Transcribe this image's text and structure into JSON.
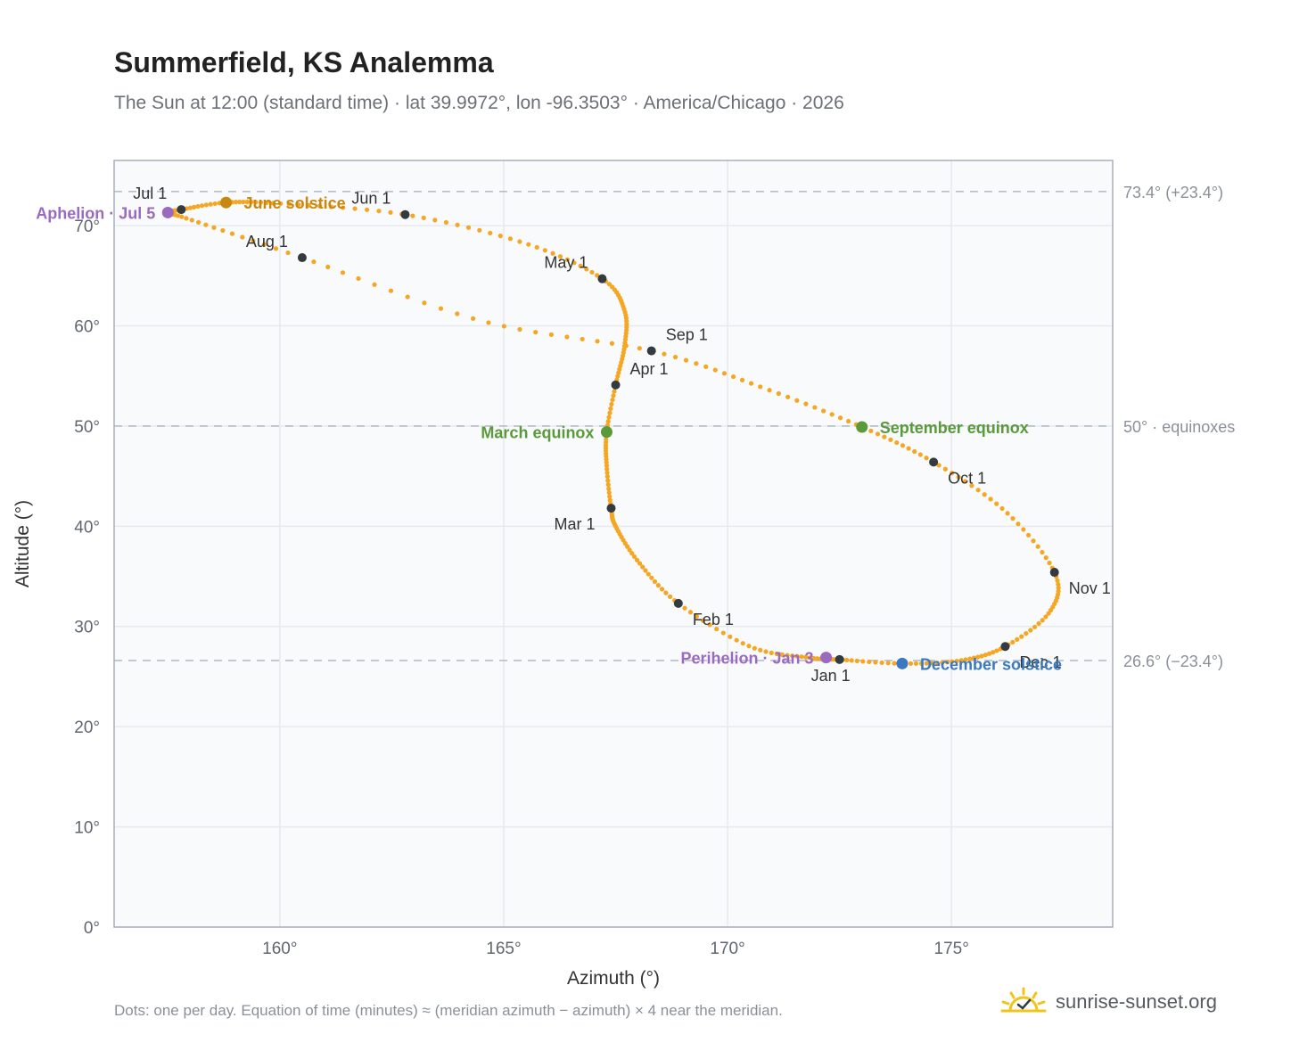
{
  "title": "Summerfield, KS Analemma",
  "subtitle": "The Sun at 12:00 (standard time) · lat 39.9972°, lon -96.3503° · America/Chicago · 2026",
  "footnote": "Dots: one per day. Equation of time (minutes) ≈ (meridian azimuth − azimuth) × 4 near the meridian.",
  "brand": {
    "name": "sunrise-sunset.org",
    "icon": "sun-check-icon",
    "icon_color": "#f0c419"
  },
  "colors": {
    "path": "#f5a623",
    "month_marker": "#333a40",
    "solstice_june": "#c8870f",
    "solstice_december": "#3a78c0",
    "equinox": "#5a9a3a",
    "apsis": "#9a6ac0",
    "grid": "#e6e9ee",
    "plot_bg": "#f8fafc",
    "plot_border": "#a7b0bd",
    "reference_line": "#b5bec9"
  },
  "chart_data": {
    "type": "scatter",
    "xlabel": "Azimuth (°)",
    "ylabel": "Altitude (°)",
    "xlim": [
      156.3,
      178.6
    ],
    "ylim": [
      0,
      76.5
    ],
    "xticks": [
      {
        "value": 160,
        "label": "160°"
      },
      {
        "value": 165,
        "label": "165°"
      },
      {
        "value": 170,
        "label": "170°"
      },
      {
        "value": 175,
        "label": "175°"
      }
    ],
    "yticks": [
      {
        "value": 0,
        "label": "0°"
      },
      {
        "value": 10,
        "label": "10°"
      },
      {
        "value": 20,
        "label": "20°"
      },
      {
        "value": 30,
        "label": "30°"
      },
      {
        "value": 40,
        "label": "40°"
      },
      {
        "value": 50,
        "label": "50°"
      },
      {
        "value": 60,
        "label": "60°"
      },
      {
        "value": 70,
        "label": "70°"
      }
    ],
    "grid": true,
    "reference_lines": [
      {
        "y": 73.4,
        "label": "73.4° (+23.4°)"
      },
      {
        "y": 50,
        "label": "50° · equinoxes"
      },
      {
        "y": 26.6,
        "label": "26.6° (−23.4°)"
      }
    ],
    "path_anchors": [
      {
        "x": 172.5,
        "y": 26.7
      },
      {
        "x": 171.8,
        "y": 26.9
      },
      {
        "x": 170.5,
        "y": 28.0
      },
      {
        "x": 168.9,
        "y": 32.3
      },
      {
        "x": 168.0,
        "y": 36.5
      },
      {
        "x": 167.5,
        "y": 40.0
      },
      {
        "x": 167.4,
        "y": 41.8
      },
      {
        "x": 167.3,
        "y": 46.0
      },
      {
        "x": 167.3,
        "y": 49.4
      },
      {
        "x": 167.5,
        "y": 54.1
      },
      {
        "x": 167.7,
        "y": 58.0
      },
      {
        "x": 167.7,
        "y": 61.5
      },
      {
        "x": 167.2,
        "y": 64.7
      },
      {
        "x": 165.5,
        "y": 68.2
      },
      {
        "x": 162.8,
        "y": 71.1
      },
      {
        "x": 160.0,
        "y": 72.2
      },
      {
        "x": 158.8,
        "y": 72.3
      },
      {
        "x": 157.8,
        "y": 71.6
      },
      {
        "x": 157.5,
        "y": 71.3
      },
      {
        "x": 158.0,
        "y": 70.6
      },
      {
        "x": 160.5,
        "y": 66.8
      },
      {
        "x": 164.5,
        "y": 60.5
      },
      {
        "x": 168.3,
        "y": 57.5
      },
      {
        "x": 170.8,
        "y": 53.8
      },
      {
        "x": 173.0,
        "y": 49.9
      },
      {
        "x": 174.6,
        "y": 46.4
      },
      {
        "x": 176.2,
        "y": 41.5
      },
      {
        "x": 177.3,
        "y": 35.4
      },
      {
        "x": 177.2,
        "y": 31.5
      },
      {
        "x": 176.2,
        "y": 28.0
      },
      {
        "x": 175.2,
        "y": 26.6
      },
      {
        "x": 173.9,
        "y": 26.3
      },
      {
        "x": 172.5,
        "y": 26.7
      }
    ],
    "month_markers": [
      {
        "label": "Jan 1",
        "x": 172.5,
        "y": 26.7,
        "pos": "below"
      },
      {
        "label": "Feb 1",
        "x": 168.9,
        "y": 32.3,
        "pos": "below-right"
      },
      {
        "label": "Mar 1",
        "x": 167.4,
        "y": 41.8,
        "pos": "below-left"
      },
      {
        "label": "Apr 1",
        "x": 167.5,
        "y": 54.1,
        "pos": "above-right"
      },
      {
        "label": "May 1",
        "x": 167.2,
        "y": 64.7,
        "pos": "above-left"
      },
      {
        "label": "Jun 1",
        "x": 162.8,
        "y": 71.1,
        "pos": "above-left"
      },
      {
        "label": "Jul 1",
        "x": 157.8,
        "y": 71.6,
        "pos": "above-left"
      },
      {
        "label": "Aug 1",
        "x": 160.5,
        "y": 66.8,
        "pos": "above-left"
      },
      {
        "label": "Sep 1",
        "x": 168.3,
        "y": 57.5,
        "pos": "above-right"
      },
      {
        "label": "Oct 1",
        "x": 174.6,
        "y": 46.4,
        "pos": "below-right"
      },
      {
        "label": "Nov 1",
        "x": 177.3,
        "y": 35.4,
        "pos": "below-right"
      },
      {
        "label": "Dec 1",
        "x": 176.2,
        "y": 28.0,
        "pos": "below-right"
      }
    ],
    "events": [
      {
        "label": "June solstice",
        "x": 158.8,
        "y": 72.3,
        "color_key": "solstice_june",
        "pos": "right"
      },
      {
        "label": "December solstice",
        "x": 173.9,
        "y": 26.3,
        "color_key": "solstice_december",
        "pos": "right"
      },
      {
        "label": "March equinox",
        "x": 167.3,
        "y": 49.4,
        "color_key": "equinox",
        "pos": "left"
      },
      {
        "label": "September equinox",
        "x": 173.0,
        "y": 49.9,
        "color_key": "equinox",
        "pos": "right"
      },
      {
        "label": "Aphelion · Jul 5",
        "x": 157.5,
        "y": 71.3,
        "color_key": "apsis",
        "pos": "left"
      },
      {
        "label": "Perihelion · Jan 3",
        "x": 172.2,
        "y": 26.9,
        "color_key": "apsis",
        "pos": "left"
      }
    ]
  }
}
